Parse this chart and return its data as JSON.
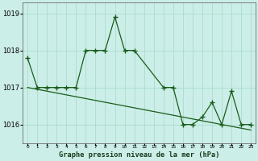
{
  "title": "Graphe pression niveau de la mer (hPa)",
  "bg_color": "#cceee8",
  "grid_color": "#aaddcc",
  "line_color": "#1a5c1a",
  "xlim": [
    -0.5,
    23.5
  ],
  "ylim": [
    1015.5,
    1019.3
  ],
  "yticks": [
    1016,
    1017,
    1018,
    1019
  ],
  "xticks": [
    0,
    1,
    2,
    3,
    4,
    5,
    6,
    7,
    8,
    9,
    10,
    11,
    12,
    13,
    14,
    15,
    16,
    17,
    18,
    19,
    20,
    21,
    22,
    23
  ],
  "s1_x": [
    0,
    1,
    2,
    3,
    4,
    5,
    6,
    7,
    8,
    9,
    10,
    11,
    14,
    15,
    16,
    17,
    18,
    19,
    20,
    21,
    22,
    23
  ],
  "s1_y": [
    1017.8,
    1017.0,
    1017.0,
    1017.0,
    1017.0,
    1017.0,
    1018.0,
    1018.0,
    1018.0,
    1018.9,
    1018.0,
    1018.0,
    1017.0,
    1017.0,
    1016.0,
    1016.0,
    1016.2,
    1016.6,
    1016.0,
    1016.9,
    1016.0,
    1016.0
  ],
  "s2_x": [
    0,
    1,
    2,
    3,
    4,
    5,
    6,
    7,
    8,
    9,
    10,
    11,
    12,
    13,
    14,
    15,
    16,
    17,
    18,
    19,
    20,
    21,
    22,
    23
  ],
  "s2_y": [
    1017.0,
    1016.95,
    1016.9,
    1016.85,
    1016.8,
    1016.75,
    1016.7,
    1016.65,
    1016.6,
    1016.55,
    1016.5,
    1016.45,
    1016.4,
    1016.35,
    1016.3,
    1016.25,
    1016.2,
    1016.15,
    1016.1,
    1016.05,
    1016.0,
    1015.95,
    1015.9,
    1015.85
  ]
}
